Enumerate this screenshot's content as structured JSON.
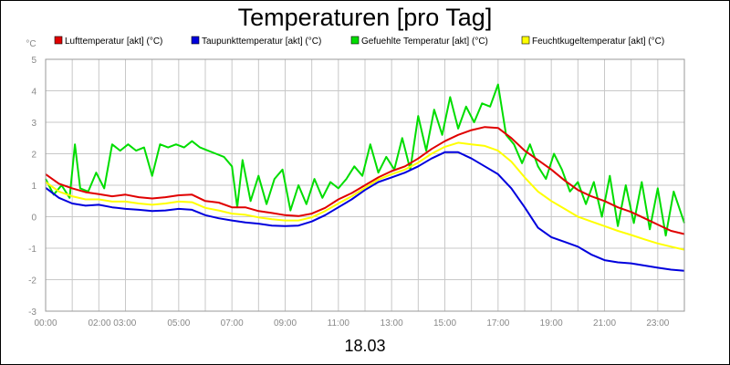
{
  "chart_data": {
    "type": "line",
    "title": "Temperaturen [pro Tag]",
    "xlabel": "18.03",
    "ylabel": "°C",
    "xlim": [
      0,
      24
    ],
    "ylim": [
      -3,
      5
    ],
    "yticks": [
      "-3",
      "-2",
      "-1",
      "0",
      "1",
      "2",
      "3",
      "4",
      "5"
    ],
    "xtick_labels": [
      {
        "t": 0,
        "label": "00:00"
      },
      {
        "t": 2.5,
        "label": "02:00 03:00"
      },
      {
        "t": 5,
        "label": "05:00"
      },
      {
        "t": 7,
        "label": "07:00"
      },
      {
        "t": 9,
        "label": "09:00"
      },
      {
        "t": 11,
        "label": "11:00"
      },
      {
        "t": 13,
        "label": "13:00"
      },
      {
        "t": 15,
        "label": "15:00"
      },
      {
        "t": 17,
        "label": "17:00"
      },
      {
        "t": 19,
        "label": "19:00"
      },
      {
        "t": 21,
        "label": "21:00"
      },
      {
        "t": 23,
        "label": "23:00"
      }
    ],
    "grid": true,
    "legend_position": "top",
    "series": [
      {
        "name": "Lufttemperatur [akt] (°C)",
        "color": "#e00000",
        "points": [
          [
            0,
            1.35
          ],
          [
            0.5,
            1.05
          ],
          [
            1,
            0.9
          ],
          [
            1.5,
            0.78
          ],
          [
            2,
            0.72
          ],
          [
            2.5,
            0.65
          ],
          [
            3,
            0.7
          ],
          [
            3.5,
            0.62
          ],
          [
            4,
            0.58
          ],
          [
            4.5,
            0.62
          ],
          [
            5,
            0.68
          ],
          [
            5.5,
            0.7
          ],
          [
            6,
            0.5
          ],
          [
            6.5,
            0.45
          ],
          [
            7,
            0.3
          ],
          [
            7.5,
            0.3
          ],
          [
            8,
            0.18
          ],
          [
            8.5,
            0.12
          ],
          [
            9,
            0.05
          ],
          [
            9.5,
            0.02
          ],
          [
            10,
            0.1
          ],
          [
            10.5,
            0.28
          ],
          [
            11,
            0.55
          ],
          [
            11.5,
            0.75
          ],
          [
            12,
            1.0
          ],
          [
            12.5,
            1.25
          ],
          [
            13,
            1.45
          ],
          [
            13.5,
            1.6
          ],
          [
            14,
            1.85
          ],
          [
            14.5,
            2.15
          ],
          [
            15,
            2.4
          ],
          [
            15.5,
            2.6
          ],
          [
            16,
            2.75
          ],
          [
            16.5,
            2.85
          ],
          [
            17,
            2.82
          ],
          [
            17.5,
            2.5
          ],
          [
            18,
            2.1
          ],
          [
            18.5,
            1.8
          ],
          [
            19,
            1.5
          ],
          [
            19.5,
            1.15
          ],
          [
            20,
            0.85
          ],
          [
            20.5,
            0.65
          ],
          [
            21,
            0.5
          ],
          [
            21.5,
            0.3
          ],
          [
            22,
            0.15
          ],
          [
            22.5,
            -0.05
          ],
          [
            23,
            -0.25
          ],
          [
            23.5,
            -0.45
          ],
          [
            24,
            -0.55
          ]
        ]
      },
      {
        "name": "Taupunkttemperatur [akt] (°C)",
        "color": "#0000dd",
        "points": [
          [
            0,
            0.92
          ],
          [
            0.5,
            0.6
          ],
          [
            1,
            0.42
          ],
          [
            1.5,
            0.35
          ],
          [
            2,
            0.38
          ],
          [
            2.5,
            0.3
          ],
          [
            3,
            0.25
          ],
          [
            3.5,
            0.22
          ],
          [
            4,
            0.18
          ],
          [
            4.5,
            0.2
          ],
          [
            5,
            0.25
          ],
          [
            5.5,
            0.22
          ],
          [
            6,
            0.05
          ],
          [
            6.5,
            -0.05
          ],
          [
            7,
            -0.12
          ],
          [
            7.5,
            -0.18
          ],
          [
            8,
            -0.22
          ],
          [
            8.5,
            -0.28
          ],
          [
            9,
            -0.3
          ],
          [
            9.5,
            -0.28
          ],
          [
            10,
            -0.15
          ],
          [
            10.5,
            0.05
          ],
          [
            11,
            0.3
          ],
          [
            11.5,
            0.55
          ],
          [
            12,
            0.85
          ],
          [
            12.5,
            1.1
          ],
          [
            13,
            1.25
          ],
          [
            13.5,
            1.4
          ],
          [
            14,
            1.6
          ],
          [
            14.5,
            1.85
          ],
          [
            15,
            2.05
          ],
          [
            15.5,
            2.05
          ],
          [
            16,
            1.85
          ],
          [
            16.5,
            1.6
          ],
          [
            17,
            1.35
          ],
          [
            17.5,
            0.9
          ],
          [
            18,
            0.3
          ],
          [
            18.5,
            -0.35
          ],
          [
            19,
            -0.65
          ],
          [
            19.5,
            -0.8
          ],
          [
            20,
            -0.95
          ],
          [
            20.5,
            -1.2
          ],
          [
            21,
            -1.38
          ],
          [
            21.5,
            -1.45
          ],
          [
            22,
            -1.48
          ],
          [
            22.5,
            -1.55
          ],
          [
            23,
            -1.62
          ],
          [
            23.5,
            -1.68
          ],
          [
            24,
            -1.72
          ]
        ]
      },
      {
        "name": "Gefuehlte Temperatur [akt] (°C)",
        "color": "#00dd00",
        "points": [
          [
            0,
            1.2
          ],
          [
            0.3,
            0.7
          ],
          [
            0.6,
            1.0
          ],
          [
            0.9,
            0.6
          ],
          [
            1.1,
            2.3
          ],
          [
            1.3,
            0.9
          ],
          [
            1.6,
            0.8
          ],
          [
            1.9,
            1.4
          ],
          [
            2.2,
            0.9
          ],
          [
            2.5,
            2.3
          ],
          [
            2.8,
            2.1
          ],
          [
            3.1,
            2.3
          ],
          [
            3.4,
            2.1
          ],
          [
            3.7,
            2.2
          ],
          [
            4,
            1.3
          ],
          [
            4.3,
            2.3
          ],
          [
            4.6,
            2.2
          ],
          [
            4.9,
            2.3
          ],
          [
            5.2,
            2.2
          ],
          [
            5.5,
            2.4
          ],
          [
            5.8,
            2.2
          ],
          [
            6.1,
            2.1
          ],
          [
            6.4,
            2.0
          ],
          [
            6.7,
            1.9
          ],
          [
            7,
            1.6
          ],
          [
            7.2,
            0.3
          ],
          [
            7.4,
            1.8
          ],
          [
            7.7,
            0.5
          ],
          [
            8,
            1.3
          ],
          [
            8.3,
            0.4
          ],
          [
            8.6,
            1.2
          ],
          [
            8.9,
            1.5
          ],
          [
            9.2,
            0.2
          ],
          [
            9.5,
            1.0
          ],
          [
            9.8,
            0.4
          ],
          [
            10.1,
            1.2
          ],
          [
            10.4,
            0.6
          ],
          [
            10.7,
            1.1
          ],
          [
            11,
            0.9
          ],
          [
            11.3,
            1.2
          ],
          [
            11.6,
            1.6
          ],
          [
            11.9,
            1.3
          ],
          [
            12.2,
            2.3
          ],
          [
            12.5,
            1.4
          ],
          [
            12.8,
            1.9
          ],
          [
            13.1,
            1.5
          ],
          [
            13.4,
            2.5
          ],
          [
            13.7,
            1.5
          ],
          [
            14,
            3.2
          ],
          [
            14.3,
            2.1
          ],
          [
            14.6,
            3.4
          ],
          [
            14.9,
            2.6
          ],
          [
            15.2,
            3.8
          ],
          [
            15.5,
            2.8
          ],
          [
            15.8,
            3.5
          ],
          [
            16.1,
            3.0
          ],
          [
            16.4,
            3.6
          ],
          [
            16.7,
            3.5
          ],
          [
            17,
            4.2
          ],
          [
            17.3,
            2.6
          ],
          [
            17.6,
            2.3
          ],
          [
            17.9,
            1.7
          ],
          [
            18.2,
            2.3
          ],
          [
            18.5,
            1.6
          ],
          [
            18.8,
            1.2
          ],
          [
            19.1,
            2.0
          ],
          [
            19.4,
            1.5
          ],
          [
            19.7,
            0.8
          ],
          [
            20,
            1.1
          ],
          [
            20.3,
            0.4
          ],
          [
            20.6,
            1.1
          ],
          [
            20.9,
            0.0
          ],
          [
            21.2,
            1.3
          ],
          [
            21.5,
            -0.3
          ],
          [
            21.8,
            1.0
          ],
          [
            22.1,
            -0.2
          ],
          [
            22.4,
            1.1
          ],
          [
            22.7,
            -0.4
          ],
          [
            23,
            0.9
          ],
          [
            23.3,
            -0.6
          ],
          [
            23.6,
            0.8
          ],
          [
            24,
            -0.2
          ]
        ]
      },
      {
        "name": "Feuchtkugeltemperatur [akt] (°C)",
        "color": "#ffff00",
        "points": [
          [
            0,
            1.1
          ],
          [
            0.5,
            0.8
          ],
          [
            1,
            0.65
          ],
          [
            1.5,
            0.55
          ],
          [
            2,
            0.55
          ],
          [
            2.5,
            0.48
          ],
          [
            3,
            0.48
          ],
          [
            3.5,
            0.42
          ],
          [
            4,
            0.38
          ],
          [
            4.5,
            0.42
          ],
          [
            5,
            0.48
          ],
          [
            5.5,
            0.46
          ],
          [
            6,
            0.28
          ],
          [
            6.5,
            0.2
          ],
          [
            7,
            0.1
          ],
          [
            7.5,
            0.06
          ],
          [
            8,
            -0.02
          ],
          [
            8.5,
            -0.08
          ],
          [
            9,
            -0.12
          ],
          [
            9.5,
            -0.12
          ],
          [
            10,
            -0.02
          ],
          [
            10.5,
            0.18
          ],
          [
            11,
            0.42
          ],
          [
            11.5,
            0.65
          ],
          [
            12,
            0.92
          ],
          [
            12.5,
            1.18
          ],
          [
            13,
            1.35
          ],
          [
            13.5,
            1.5
          ],
          [
            14,
            1.72
          ],
          [
            14.5,
            2.0
          ],
          [
            15,
            2.22
          ],
          [
            15.5,
            2.35
          ],
          [
            16,
            2.3
          ],
          [
            16.5,
            2.25
          ],
          [
            17,
            2.1
          ],
          [
            17.5,
            1.75
          ],
          [
            18,
            1.25
          ],
          [
            18.5,
            0.8
          ],
          [
            19,
            0.5
          ],
          [
            19.5,
            0.25
          ],
          [
            20,
            0.0
          ],
          [
            20.5,
            -0.15
          ],
          [
            21,
            -0.3
          ],
          [
            21.5,
            -0.45
          ],
          [
            22,
            -0.58
          ],
          [
            22.5,
            -0.72
          ],
          [
            23,
            -0.85
          ],
          [
            23.5,
            -0.95
          ],
          [
            24,
            -1.05
          ]
        ]
      }
    ]
  }
}
